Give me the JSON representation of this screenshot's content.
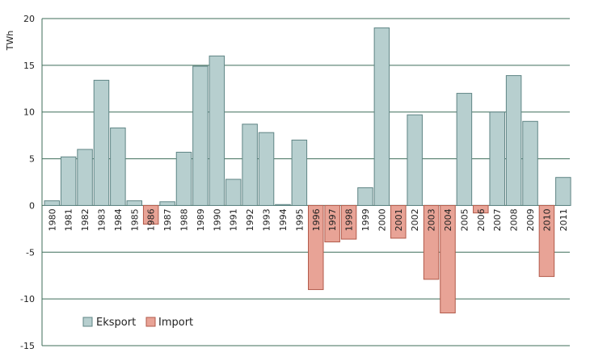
{
  "chart_data": {
    "type": "bar",
    "title": "",
    "xlabel": "",
    "ylabel": "TWh",
    "ylim": [
      -15,
      20
    ],
    "yticks": [
      20,
      15,
      10,
      5,
      0,
      -5,
      -10,
      -15
    ],
    "grid": true,
    "legend_position": "bottom-left",
    "categories": [
      "1980",
      "1981",
      "1982",
      "1983",
      "1984",
      "1985",
      "1986",
      "1987",
      "1988",
      "1989",
      "1990",
      "1991",
      "1992",
      "1993",
      "1994",
      "1995",
      "1996",
      "1997",
      "1998",
      "1999",
      "2000",
      "2001",
      "2002",
      "2003",
      "2004",
      "2005",
      "2006",
      "2007",
      "2008",
      "2009",
      "2010",
      "2011"
    ],
    "values": [
      0.5,
      5.2,
      6.0,
      13.4,
      8.3,
      0.5,
      -2.0,
      0.4,
      5.7,
      14.9,
      16.0,
      2.8,
      8.7,
      7.8,
      0.1,
      7.0,
      -9.0,
      -3.9,
      -3.6,
      1.9,
      19.0,
      -3.5,
      9.7,
      -7.9,
      -11.5,
      12.0,
      -0.8,
      10.0,
      13.9,
      9.0,
      -7.6,
      3.0
    ],
    "legend": [
      {
        "name": "Eksport",
        "color": "#b7cfcf"
      },
      {
        "name": "Import",
        "color": "#e8a396"
      }
    ],
    "colors": {
      "export_fill": "#b7cfcf",
      "export_stroke": "#5f8585",
      "import_fill": "#e8a396",
      "import_stroke": "#b25a4a",
      "grid": "#3f6e5a"
    }
  }
}
